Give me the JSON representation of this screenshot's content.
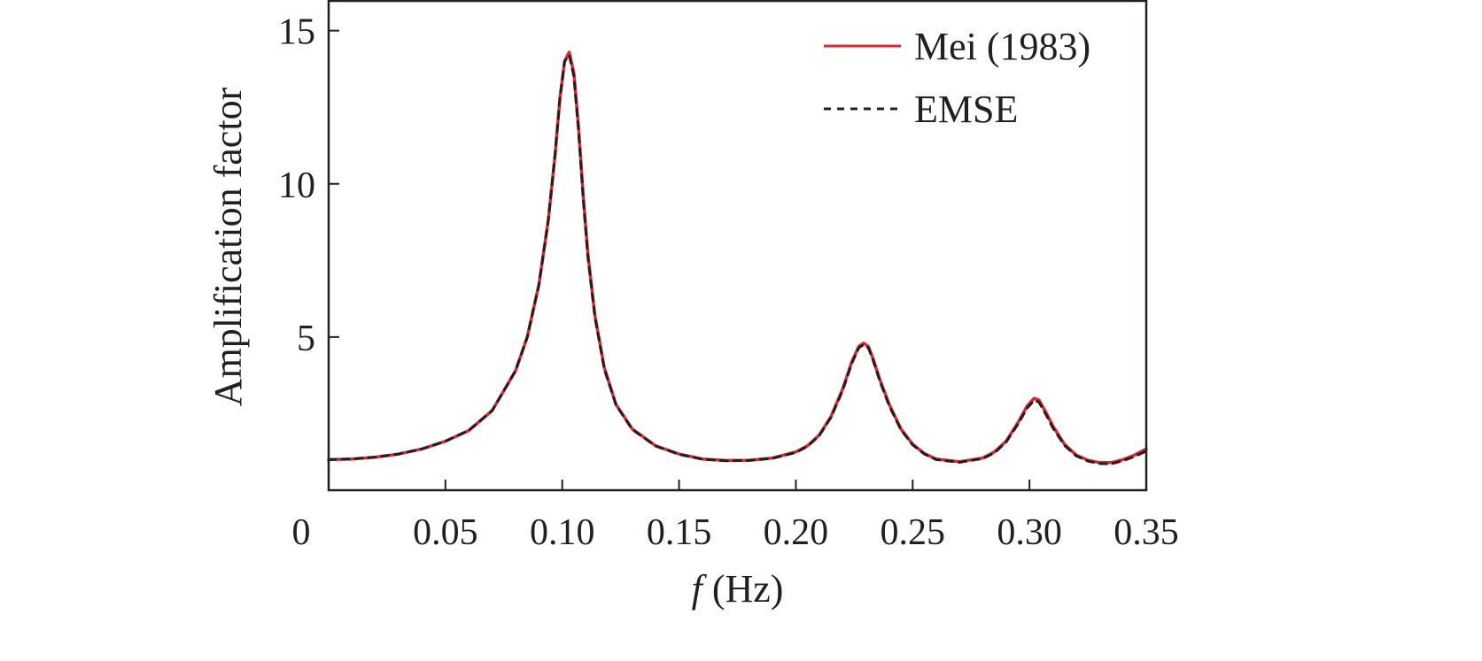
{
  "chart_data": {
    "type": "line",
    "xlabel_italic": "f",
    "xlabel_rest": " (Hz)",
    "ylabel": "Amplification factor",
    "xlim": [
      0,
      0.35
    ],
    "ylim": [
      0,
      16
    ],
    "x_ticks": [
      0.05,
      0.1,
      0.15,
      0.2,
      0.25,
      0.3,
      0.35
    ],
    "x_tick_labels": [
      "0.05",
      "0.10",
      "0.15",
      "0.20",
      "0.25",
      "0.30",
      "0.35"
    ],
    "y_ticks": [
      5,
      10,
      15
    ],
    "y_tick_labels": [
      "5",
      "10",
      "15"
    ],
    "origin_label": "0",
    "grid": false,
    "legend_position": "top-right",
    "series": [
      {
        "name": "Mei (1983)",
        "color": "#e0262b",
        "style": "solid",
        "x": [
          0.0,
          0.01,
          0.02,
          0.03,
          0.04,
          0.05,
          0.06,
          0.07,
          0.08,
          0.085,
          0.09,
          0.094,
          0.097,
          0.099,
          0.101,
          0.103,
          0.105,
          0.107,
          0.109,
          0.111,
          0.114,
          0.118,
          0.123,
          0.13,
          0.14,
          0.15,
          0.16,
          0.17,
          0.18,
          0.19,
          0.2,
          0.205,
          0.21,
          0.215,
          0.22,
          0.224,
          0.227,
          0.229,
          0.231,
          0.233,
          0.236,
          0.24,
          0.245,
          0.25,
          0.255,
          0.26,
          0.27,
          0.28,
          0.285,
          0.29,
          0.295,
          0.299,
          0.302,
          0.304,
          0.307,
          0.31,
          0.315,
          0.32,
          0.325,
          0.33,
          0.335,
          0.34,
          0.345,
          0.35
        ],
        "y": [
          1.0,
          1.02,
          1.08,
          1.18,
          1.35,
          1.6,
          1.95,
          2.6,
          3.9,
          5.0,
          6.7,
          8.8,
          11.0,
          12.8,
          14.0,
          14.3,
          13.6,
          11.8,
          9.6,
          7.7,
          5.7,
          4.0,
          2.8,
          2.0,
          1.45,
          1.18,
          1.02,
          0.97,
          0.98,
          1.05,
          1.25,
          1.45,
          1.8,
          2.4,
          3.3,
          4.2,
          4.7,
          4.8,
          4.7,
          4.3,
          3.6,
          2.8,
          2.0,
          1.5,
          1.2,
          1.02,
          0.93,
          1.05,
          1.25,
          1.6,
          2.2,
          2.75,
          3.0,
          2.95,
          2.55,
          2.1,
          1.5,
          1.15,
          0.98,
          0.9,
          0.9,
          1.0,
          1.15,
          1.35
        ]
      },
      {
        "name": "EMSE",
        "color": "#231f20",
        "style": "dashed",
        "x": [
          0.0,
          0.01,
          0.02,
          0.03,
          0.04,
          0.05,
          0.06,
          0.07,
          0.08,
          0.085,
          0.09,
          0.094,
          0.097,
          0.099,
          0.101,
          0.103,
          0.105,
          0.107,
          0.109,
          0.111,
          0.114,
          0.118,
          0.123,
          0.13,
          0.14,
          0.15,
          0.16,
          0.17,
          0.18,
          0.19,
          0.2,
          0.205,
          0.21,
          0.215,
          0.22,
          0.224,
          0.227,
          0.229,
          0.231,
          0.233,
          0.236,
          0.24,
          0.245,
          0.25,
          0.255,
          0.26,
          0.27,
          0.28,
          0.285,
          0.29,
          0.295,
          0.299,
          0.302,
          0.304,
          0.307,
          0.31,
          0.315,
          0.32,
          0.325,
          0.33,
          0.335,
          0.34,
          0.345,
          0.35
        ],
        "y": [
          1.0,
          1.02,
          1.08,
          1.18,
          1.35,
          1.6,
          1.95,
          2.6,
          3.9,
          5.0,
          6.7,
          8.8,
          11.0,
          12.8,
          14.0,
          14.2,
          13.5,
          11.7,
          9.5,
          7.6,
          5.65,
          3.95,
          2.78,
          1.98,
          1.44,
          1.17,
          1.01,
          0.96,
          0.97,
          1.04,
          1.23,
          1.43,
          1.78,
          2.37,
          3.25,
          4.15,
          4.65,
          4.75,
          4.65,
          4.25,
          3.55,
          2.75,
          1.97,
          1.48,
          1.18,
          1.0,
          0.91,
          1.03,
          1.22,
          1.57,
          2.15,
          2.68,
          2.93,
          2.88,
          2.48,
          2.04,
          1.46,
          1.12,
          0.95,
          0.87,
          0.86,
          0.96,
          1.1,
          1.28
        ]
      }
    ]
  }
}
